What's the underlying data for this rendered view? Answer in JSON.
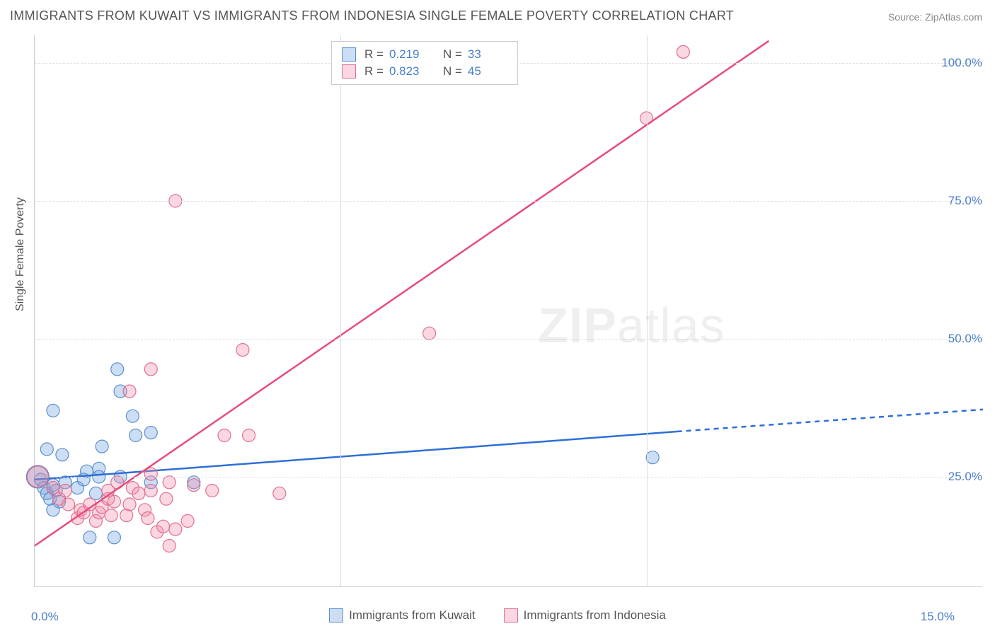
{
  "title": "IMMIGRANTS FROM KUWAIT VS IMMIGRANTS FROM INDONESIA SINGLE FEMALE POVERTY CORRELATION CHART",
  "source_label": "Source: ",
  "source_name": "ZipAtlas.com",
  "ylabel": "Single Female Poverty",
  "watermark_bold": "ZIP",
  "watermark_rest": "atlas",
  "chart": {
    "type": "scatter",
    "xlim": [
      0,
      15.5
    ],
    "ylim": [
      5,
      105
    ],
    "xticks": [
      {
        "v": 0,
        "label": "0.0%"
      },
      {
        "v": 15,
        "label": "15.0%"
      }
    ],
    "yticks": [
      {
        "v": 25,
        "label": "25.0%"
      },
      {
        "v": 50,
        "label": "50.0%"
      },
      {
        "v": 75,
        "label": "75.0%"
      },
      {
        "v": 100,
        "label": "100.0%"
      }
    ],
    "x_gridlines": [
      5,
      10
    ],
    "background_color": "#ffffff",
    "grid_color": "#dddddd",
    "point_radius": 9,
    "point_radius_large": 16,
    "series": [
      {
        "name": "Immigrants from Kuwait",
        "color_fill": "#6ea0dc",
        "color_stroke": "#5a8fd0",
        "class": "blue",
        "R": "0.219",
        "N": "33",
        "trend": {
          "x1": 0,
          "y1": 24.5,
          "x2": 10.5,
          "y2": 33.2,
          "dash_from_x": 10.5,
          "x3": 15.5,
          "y3": 37.2,
          "color": "#2d6fd6"
        },
        "points": [
          {
            "x": 0.05,
            "y": 25,
            "r": 16
          },
          {
            "x": 0.1,
            "y": 24.5
          },
          {
            "x": 0.15,
            "y": 23
          },
          {
            "x": 0.2,
            "y": 22
          },
          {
            "x": 0.25,
            "y": 21
          },
          {
            "x": 0.3,
            "y": 23.5
          },
          {
            "x": 0.35,
            "y": 22.5
          },
          {
            "x": 0.4,
            "y": 20.5
          },
          {
            "x": 0.5,
            "y": 24
          },
          {
            "x": 0.2,
            "y": 30
          },
          {
            "x": 0.3,
            "y": 37
          },
          {
            "x": 0.45,
            "y": 29
          },
          {
            "x": 0.7,
            "y": 23
          },
          {
            "x": 0.8,
            "y": 24.5
          },
          {
            "x": 0.85,
            "y": 26
          },
          {
            "x": 1.0,
            "y": 22
          },
          {
            "x": 1.05,
            "y": 25
          },
          {
            "x": 1.05,
            "y": 26.5
          },
          {
            "x": 1.1,
            "y": 30.5
          },
          {
            "x": 1.35,
            "y": 44.5
          },
          {
            "x": 1.4,
            "y": 40.5
          },
          {
            "x": 1.4,
            "y": 25
          },
          {
            "x": 1.6,
            "y": 36
          },
          {
            "x": 1.65,
            "y": 32.5
          },
          {
            "x": 0.9,
            "y": 14
          },
          {
            "x": 1.3,
            "y": 14
          },
          {
            "x": 0.3,
            "y": 19
          },
          {
            "x": 1.9,
            "y": 24
          },
          {
            "x": 1.9,
            "y": 33
          },
          {
            "x": 2.6,
            "y": 24
          },
          {
            "x": 10.1,
            "y": 28.5
          }
        ]
      },
      {
        "name": "Immigrants from Indonesia",
        "color_fill": "#f08caa",
        "color_stroke": "#e0708f",
        "class": "pink",
        "R": "0.823",
        "N": "45",
        "trend": {
          "x1": 0,
          "y1": 12.5,
          "x2": 12.0,
          "y2": 104,
          "color": "#e74b7d"
        },
        "points": [
          {
            "x": 0.05,
            "y": 25,
            "r": 15
          },
          {
            "x": 0.3,
            "y": 23
          },
          {
            "x": 0.4,
            "y": 21
          },
          {
            "x": 0.5,
            "y": 22.5
          },
          {
            "x": 0.55,
            "y": 20
          },
          {
            "x": 0.7,
            "y": 17.5
          },
          {
            "x": 0.75,
            "y": 19
          },
          {
            "x": 0.8,
            "y": 18.5
          },
          {
            "x": 0.9,
            "y": 20
          },
          {
            "x": 1.0,
            "y": 17
          },
          {
            "x": 1.05,
            "y": 18.5
          },
          {
            "x": 1.1,
            "y": 19.5
          },
          {
            "x": 1.2,
            "y": 21
          },
          {
            "x": 1.2,
            "y": 22.5
          },
          {
            "x": 1.25,
            "y": 18
          },
          {
            "x": 1.3,
            "y": 20.5
          },
          {
            "x": 1.35,
            "y": 24
          },
          {
            "x": 1.5,
            "y": 18
          },
          {
            "x": 1.55,
            "y": 20
          },
          {
            "x": 1.6,
            "y": 23
          },
          {
            "x": 1.7,
            "y": 22
          },
          {
            "x": 1.8,
            "y": 19
          },
          {
            "x": 1.85,
            "y": 17.5
          },
          {
            "x": 1.9,
            "y": 22.5
          },
          {
            "x": 1.9,
            "y": 25.5
          },
          {
            "x": 2.0,
            "y": 15
          },
          {
            "x": 2.1,
            "y": 16
          },
          {
            "x": 2.15,
            "y": 21
          },
          {
            "x": 2.2,
            "y": 24
          },
          {
            "x": 2.2,
            "y": 12.5
          },
          {
            "x": 2.3,
            "y": 15.5
          },
          {
            "x": 2.5,
            "y": 17
          },
          {
            "x": 2.6,
            "y": 23.5
          },
          {
            "x": 2.9,
            "y": 22.5
          },
          {
            "x": 3.1,
            "y": 32.5
          },
          {
            "x": 3.5,
            "y": 32.5
          },
          {
            "x": 4.0,
            "y": 22
          },
          {
            "x": 1.55,
            "y": 40.5
          },
          {
            "x": 1.9,
            "y": 44.5
          },
          {
            "x": 2.3,
            "y": 75
          },
          {
            "x": 3.4,
            "y": 48
          },
          {
            "x": 6.45,
            "y": 51
          },
          {
            "x": 10.0,
            "y": 90
          },
          {
            "x": 10.6,
            "y": 102
          }
        ]
      }
    ]
  },
  "legend_labels": {
    "R": "R  =",
    "N": "N  ="
  }
}
